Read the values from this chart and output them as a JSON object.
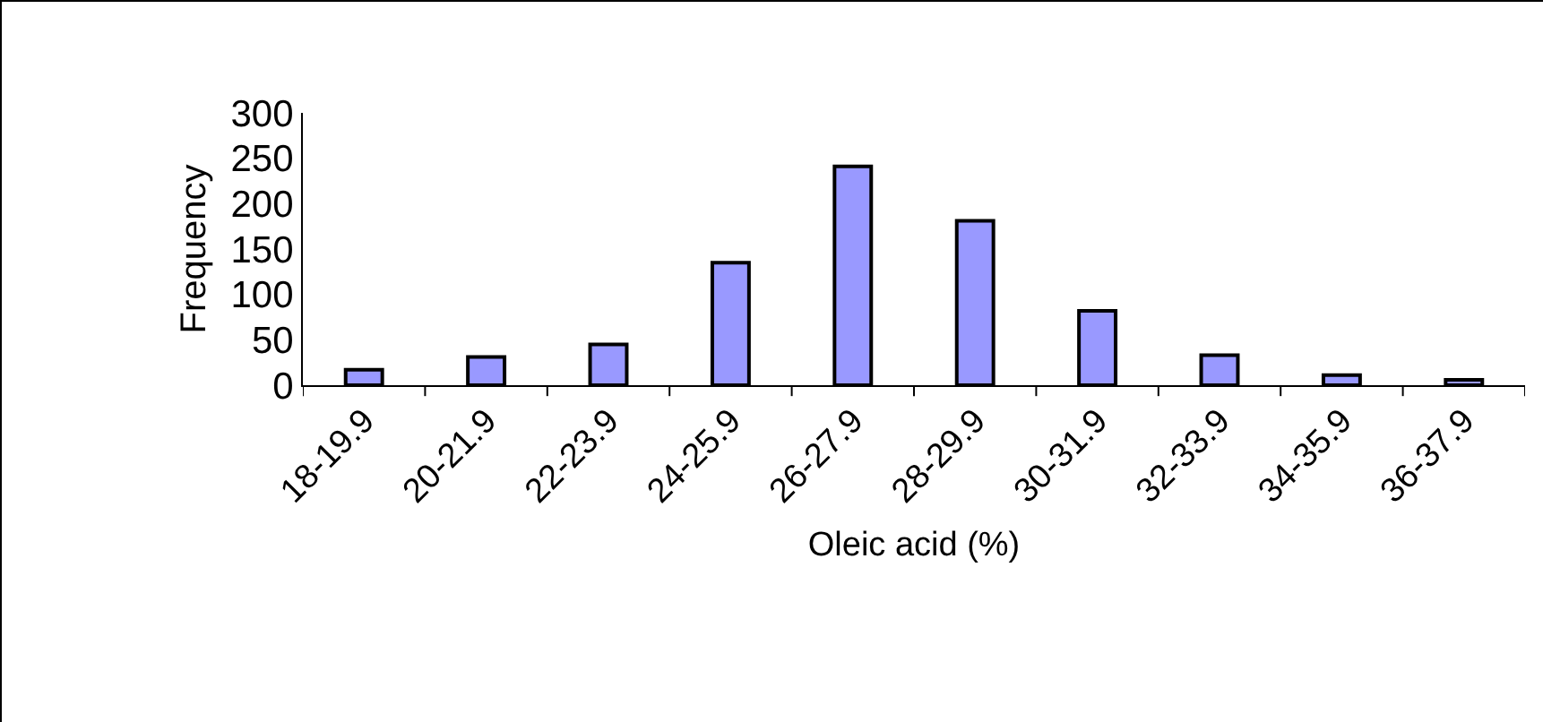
{
  "chart_data": {
    "type": "bar",
    "xlabel": "Oleic acid (%)",
    "ylabel": "Frequency",
    "categories": [
      "18-19.9",
      "20-21.9",
      "22-23.9",
      "24-25.9",
      "26-27.9",
      "28-29.9",
      "30-31.9",
      "32-33.9",
      "34-35.9",
      "36-37.9"
    ],
    "values": [
      17,
      31,
      45,
      135,
      241,
      181,
      82,
      33,
      11,
      6
    ],
    "color": "#9999ff",
    "ylim": [
      0,
      300
    ],
    "yticks": [
      0,
      50,
      100,
      150,
      200,
      250,
      300
    ],
    "grid": false,
    "legend": false
  }
}
